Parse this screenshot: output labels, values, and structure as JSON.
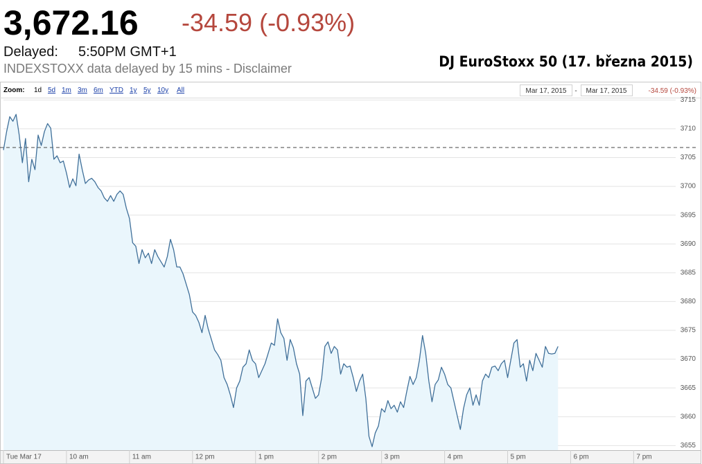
{
  "header": {
    "price": "3,672.16",
    "change": "-34.59 (-0.93%)",
    "delayed_label": "Delayed:",
    "time": "5:50PM GMT+1",
    "notice": "INDEXSTOXX data delayed by 15 mins - Disclaimer"
  },
  "zoom": {
    "label": "Zoom:",
    "options": [
      "1d",
      "5d",
      "1m",
      "3m",
      "6m",
      "YTD",
      "1y",
      "5y",
      "10y",
      "All"
    ]
  },
  "range": {
    "from": "Mar 17, 2015",
    "to": "Mar 17, 2015",
    "change": "-34.59 (-0.93%)"
  },
  "chart_data": {
    "type": "line",
    "title": "DJ EuroStoxx 50 (17. března 2015)",
    "color": "#3f6f99",
    "area_color": "#eaf6fc",
    "grid": true,
    "reference_line": 3706.75,
    "xlim": [
      540,
      1180
    ],
    "xticks": [
      {
        "value": 540,
        "label": "Tue Mar 17"
      },
      {
        "value": 600,
        "label": "10 am"
      },
      {
        "value": 660,
        "label": "11 am"
      },
      {
        "value": 720,
        "label": "12 pm"
      },
      {
        "value": 780,
        "label": "1 pm"
      },
      {
        "value": 840,
        "label": "2 pm"
      },
      {
        "value": 900,
        "label": "3 pm"
      },
      {
        "value": 960,
        "label": "4 pm"
      },
      {
        "value": 1020,
        "label": "5 pm"
      },
      {
        "value": 1080,
        "label": "6 pm"
      },
      {
        "value": 1140,
        "label": "7 pm"
      }
    ],
    "ylim": [
      3654.2,
      3715.4
    ],
    "yticks": [
      3655,
      3660,
      3665,
      3670,
      3675,
      3680,
      3685,
      3690,
      3695,
      3700,
      3705,
      3710,
      3715
    ],
    "x": [
      540,
      543,
      546,
      549,
      552,
      555,
      558,
      561,
      564,
      567,
      570,
      573,
      576,
      579,
      582,
      585,
      588,
      591,
      594,
      597,
      600,
      603,
      606,
      609,
      612,
      615,
      618,
      621,
      624,
      627,
      630,
      633,
      636,
      639,
      642,
      645,
      648,
      651,
      654,
      657,
      660,
      663,
      666,
      669,
      672,
      675,
      678,
      681,
      684,
      687,
      690,
      693,
      696,
      699,
      702,
      705,
      708,
      711,
      714,
      717,
      720,
      723,
      726,
      729,
      732,
      735,
      738,
      741,
      744,
      747,
      750,
      753,
      756,
      759,
      762,
      765,
      768,
      771,
      774,
      777,
      780,
      783,
      786,
      789,
      792,
      795,
      798,
      801,
      804,
      807,
      810,
      813,
      816,
      819,
      822,
      825,
      828,
      831,
      834,
      837,
      840,
      843,
      846,
      849,
      852,
      855,
      858,
      861,
      864,
      867,
      870,
      873,
      876,
      879,
      882,
      885,
      888,
      891,
      894,
      897,
      900,
      903,
      906,
      909,
      912,
      915,
      918,
      921,
      924,
      927,
      930,
      933,
      936,
      939,
      942,
      945,
      948,
      951,
      954,
      957,
      960,
      963,
      966,
      969,
      972,
      975,
      978,
      981,
      984,
      987,
      990,
      993,
      996,
      999,
      1002,
      1005,
      1008,
      1011,
      1014,
      1017,
      1020,
      1023,
      1026,
      1029,
      1032,
      1035,
      1038,
      1041,
      1044,
      1047,
      1050,
      1053,
      1056,
      1059,
      1062,
      1065,
      1068
    ],
    "values": [
      3706.3,
      3709.5,
      3712.1,
      3711.3,
      3712.5,
      3708.9,
      3704.1,
      3708.3,
      3700.8,
      3704.7,
      3702.9,
      3708.9,
      3707.1,
      3709.5,
      3710.9,
      3710.1,
      3704.7,
      3705.3,
      3704.1,
      3704.4,
      3702.3,
      3699.8,
      3701.3,
      3700.1,
      3705.6,
      3702.9,
      3700.5,
      3701.1,
      3701.4,
      3700.8,
      3699.8,
      3699.2,
      3698.0,
      3697.4,
      3698.4,
      3697.4,
      3698.6,
      3699.2,
      3698.6,
      3696.2,
      3694.4,
      3690.2,
      3689.6,
      3686.6,
      3689.0,
      3687.6,
      3688.4,
      3686.6,
      3689.0,
      3687.8,
      3686.9,
      3686.0,
      3687.8,
      3690.8,
      3689.0,
      3686.0,
      3686.0,
      3684.8,
      3683.0,
      3681.2,
      3678.2,
      3677.6,
      3676.4,
      3674.6,
      3677.6,
      3675.2,
      3673.4,
      3671.6,
      3670.8,
      3669.8,
      3666.8,
      3665.6,
      3663.8,
      3661.6,
      3665.0,
      3666.2,
      3668.6,
      3669.2,
      3671.6,
      3669.8,
      3669.2,
      3666.8,
      3668.0,
      3669.2,
      3671.0,
      3672.8,
      3672.4,
      3677.0,
      3674.6,
      3673.6,
      3669.8,
      3673.4,
      3672.0,
      3669.2,
      3667.4,
      3660.2,
      3666.2,
      3666.8,
      3665.0,
      3663.2,
      3663.8,
      3666.8,
      3672.2,
      3673.0,
      3671.0,
      3672.2,
      3671.6,
      3667.4,
      3669.2,
      3668.6,
      3668.8,
      3666.8,
      3664.4,
      3666.2,
      3667.4,
      3663.2,
      3656.6,
      3654.8,
      3657.2,
      3658.4,
      3661.4,
      3660.8,
      3662.8,
      3661.4,
      3662.0,
      3660.8,
      3662.6,
      3661.6,
      3664.4,
      3667.0,
      3665.6,
      3666.8,
      3669.8,
      3674.1,
      3671.0,
      3666.2,
      3662.6,
      3665.6,
      3666.4,
      3668.6,
      3667.4,
      3665.6,
      3665.0,
      3662.6,
      3660.2,
      3657.8,
      3661.4,
      3663.8,
      3665.0,
      3662.0,
      3663.8,
      3662.0,
      3666.2,
      3667.4,
      3666.8,
      3668.6,
      3668.8,
      3668.0,
      3669.2,
      3669.8,
      3666.8,
      3669.8,
      3672.8,
      3673.4,
      3668.6,
      3669.2,
      3666.2,
      3669.8,
      3668.0,
      3671.0,
      3669.8,
      3668.6,
      3672.2,
      3671.0,
      3670.9,
      3671.0,
      3672.2
    ]
  }
}
